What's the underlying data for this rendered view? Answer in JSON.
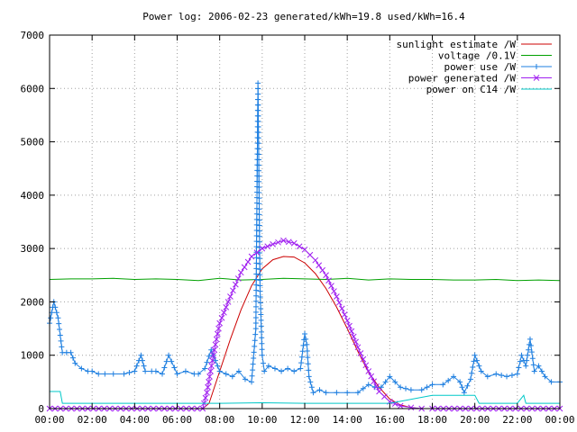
{
  "chart_data": {
    "type": "line",
    "title": "Power log: 2006-02-23 generated/kWh=19.8 used/kWh=16.4",
    "xlabel": "",
    "ylabel": "",
    "x_unit": "hours of day",
    "xlim": [
      0,
      24
    ],
    "ylim": [
      0,
      7000
    ],
    "grid": true,
    "legend_position": "top-right",
    "x_tick_labels": [
      "00:00",
      "02:00",
      "04:00",
      "06:00",
      "08:00",
      "10:00",
      "12:00",
      "14:00",
      "16:00",
      "18:00",
      "20:00",
      "22:00",
      "00:00"
    ],
    "x_ticks": [
      0,
      2,
      4,
      6,
      8,
      10,
      12,
      14,
      16,
      18,
      20,
      22,
      24
    ],
    "y_ticks": [
      0,
      1000,
      2000,
      3000,
      4000,
      5000,
      6000,
      7000
    ],
    "series": [
      {
        "name": "sunlight estimate /W",
        "color": "#cc0000",
        "marker": "none",
        "x": [
          0,
          7.2,
          7.5,
          8.0,
          8.5,
          9.0,
          9.5,
          10.0,
          10.5,
          11.0,
          11.5,
          12.0,
          12.5,
          13.0,
          13.5,
          14.0,
          14.5,
          15.0,
          15.5,
          16.0,
          16.5,
          17.0,
          17.4,
          24
        ],
        "y": [
          0,
          0,
          100,
          700,
          1300,
          1850,
          2300,
          2620,
          2790,
          2850,
          2840,
          2730,
          2530,
          2250,
          1900,
          1500,
          1070,
          680,
          400,
          180,
          70,
          20,
          0,
          0
        ]
      },
      {
        "name": "voltage /0.1V",
        "color": "#00a000",
        "marker": "none",
        "x": [
          0,
          1,
          2,
          3,
          4,
          5,
          6,
          7,
          8,
          9,
          10,
          11,
          12,
          13,
          14,
          15,
          16,
          17,
          18,
          19,
          20,
          21,
          22,
          23,
          24
        ],
        "y": [
          2420,
          2430,
          2430,
          2440,
          2420,
          2430,
          2420,
          2400,
          2440,
          2410,
          2420,
          2440,
          2430,
          2420,
          2440,
          2410,
          2430,
          2420,
          2420,
          2410,
          2410,
          2420,
          2400,
          2410,
          2400
        ]
      },
      {
        "name": "power use /W",
        "color": "#1e7fe0",
        "marker": "plus",
        "x": [
          0,
          0.2,
          0.4,
          0.6,
          0.8,
          1.0,
          1.2,
          1.5,
          1.8,
          2.0,
          2.3,
          2.6,
          3.0,
          3.5,
          4.0,
          4.3,
          4.5,
          4.8,
          5.0,
          5.3,
          5.6,
          6.0,
          6.4,
          6.8,
          7.0,
          7.3,
          7.6,
          8.0,
          8.3,
          8.6,
          8.9,
          9.2,
          9.5,
          9.7,
          9.8,
          9.9,
          10.0,
          10.1,
          10.3,
          10.6,
          10.9,
          11.2,
          11.5,
          11.8,
          12.0,
          12.1,
          12.2,
          12.4,
          12.7,
          13.0,
          13.5,
          14.0,
          14.5,
          15.0,
          15.3,
          15.6,
          16.0,
          16.5,
          17.0,
          17.5,
          18.0,
          18.5,
          19.0,
          19.3,
          19.5,
          19.8,
          20.0,
          20.3,
          20.6,
          21.0,
          21.5,
          22.0,
          22.2,
          22.4,
          22.6,
          22.8,
          23.0,
          23.3,
          23.6,
          24
        ],
        "y": [
          1600,
          2000,
          1700,
          1050,
          1050,
          1050,
          850,
          750,
          700,
          700,
          650,
          650,
          650,
          650,
          700,
          1000,
          700,
          700,
          700,
          650,
          1000,
          650,
          700,
          650,
          650,
          750,
          1100,
          700,
          650,
          600,
          700,
          550,
          500,
          1500,
          6100,
          2200,
          1000,
          700,
          800,
          750,
          700,
          750,
          700,
          750,
          1400,
          1200,
          600,
          300,
          350,
          300,
          300,
          300,
          300,
          450,
          400,
          400,
          600,
          400,
          350,
          350,
          450,
          450,
          600,
          500,
          300,
          550,
          1000,
          700,
          600,
          650,
          600,
          650,
          1000,
          800,
          1300,
          700,
          800,
          600,
          500,
          500
        ],
        "note": ""
      },
      {
        "name": "power generated /W",
        "color": "#a020f0",
        "marker": "cross",
        "x": [
          0,
          7.2,
          7.4,
          7.7,
          8.0,
          8.5,
          9.0,
          9.5,
          10.0,
          10.5,
          11.0,
          11.5,
          12.0,
          12.5,
          13.0,
          13.5,
          14.0,
          14.5,
          15.0,
          15.5,
          16.0,
          16.5,
          17.0,
          17.5,
          18.0,
          24
        ],
        "y": [
          0,
          0,
          300,
          1000,
          1600,
          2100,
          2550,
          2850,
          3000,
          3080,
          3150,
          3100,
          2980,
          2780,
          2500,
          2100,
          1650,
          1150,
          700,
          320,
          130,
          50,
          20,
          0,
          0,
          0
        ]
      },
      {
        "name": "power on C14 /W",
        "color": "#00c8c8",
        "marker": "none",
        "x": [
          0,
          0.5,
          0.6,
          2,
          4,
          6,
          8,
          10,
          12,
          14,
          16,
          18,
          19,
          19.5,
          20,
          20.2,
          21,
          22,
          22.3,
          22.4,
          22.6,
          24
        ],
        "y": [
          320,
          320,
          100,
          100,
          100,
          100,
          100,
          110,
          100,
          100,
          100,
          250,
          250,
          250,
          250,
          100,
          100,
          100,
          250,
          100,
          100,
          100
        ]
      }
    ]
  }
}
